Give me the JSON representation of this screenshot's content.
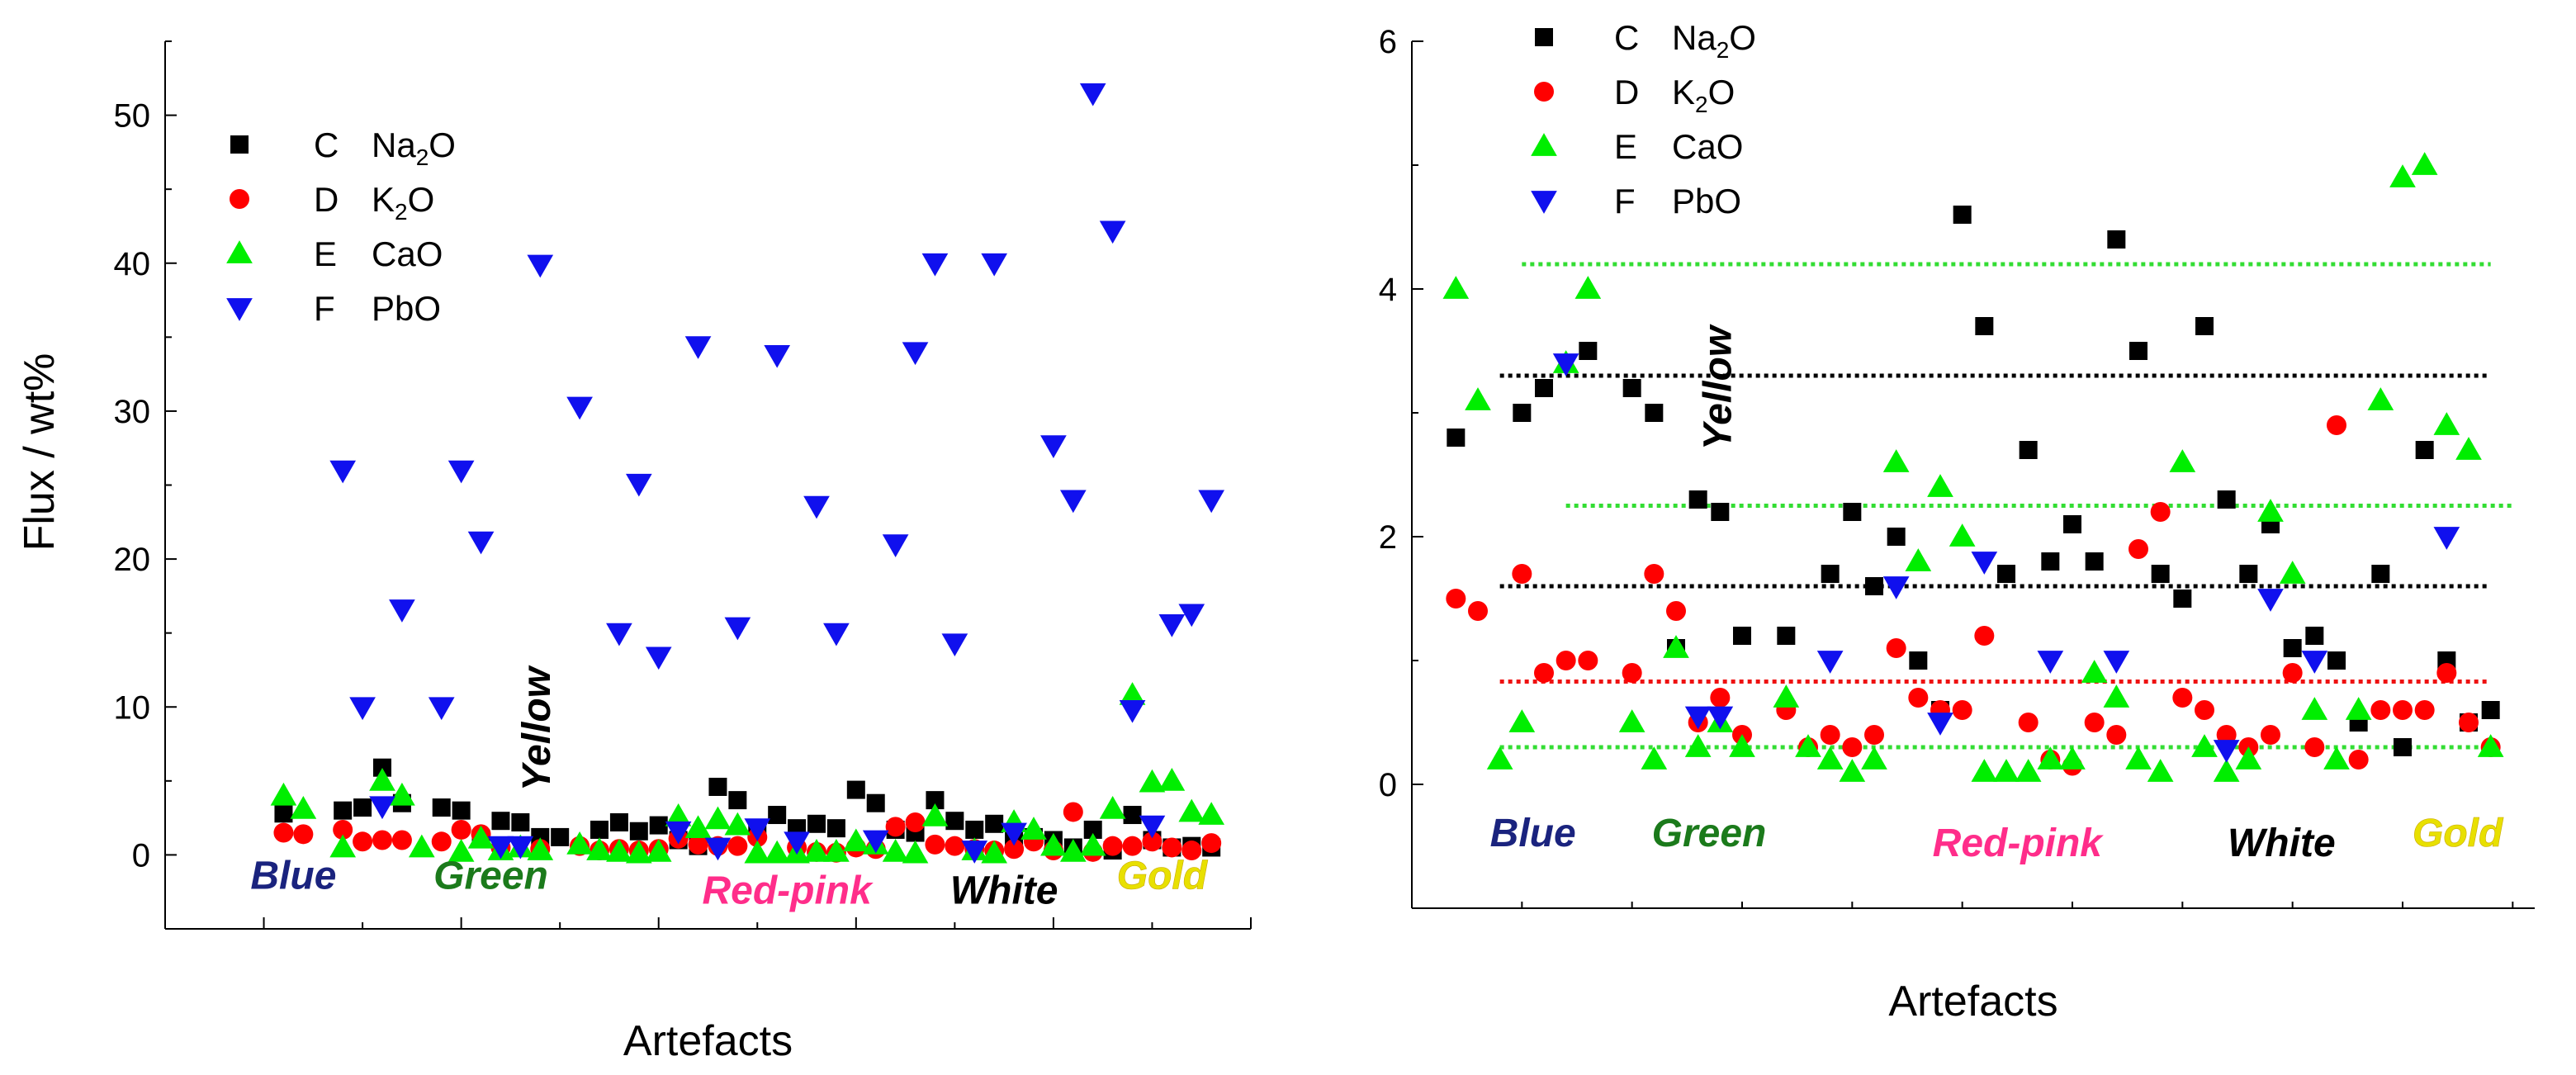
{
  "colors": {
    "na2o": "#000000",
    "k2o": "#ff0000",
    "cao": "#00ee00",
    "pbo": "#1010ee",
    "blue_label": "#1a237e",
    "green_label": "#1b7a1b",
    "red_label": "#ff2d8a",
    "white_label": "#000000",
    "gold_label": "#e8e000",
    "line_black": "#000000",
    "line_green": "#33dd33",
    "line_red": "#ee1111"
  },
  "legend": [
    {
      "key": "na2o",
      "letter": "C",
      "name_main": "Na",
      "name_sub": "2",
      "name_tail": "O",
      "marker": "square"
    },
    {
      "key": "k2o",
      "letter": "D",
      "name_main": "K",
      "name_sub": "2",
      "name_tail": "O",
      "marker": "circle"
    },
    {
      "key": "cao",
      "letter": "E",
      "name_main": "CaO",
      "name_sub": "",
      "name_tail": "",
      "marker": "triangle-up"
    },
    {
      "key": "pbo",
      "letter": "F",
      "name_main": "PbO",
      "name_sub": "",
      "name_tail": "",
      "marker": "triangle-down"
    }
  ],
  "chart_data": [
    {
      "type": "scatter",
      "title": "",
      "xlabel": "Artefacts",
      "ylabel": "Flux  /  wt%",
      "xlim": [
        -5,
        50
      ],
      "ylim": [
        -5,
        55
      ],
      "yticks": [
        0,
        10,
        20,
        30,
        40,
        50
      ],
      "xticks_major": [
        0,
        10,
        20,
        30,
        40,
        50
      ],
      "category_labels": [
        {
          "text": "Blue",
          "x": 1.5,
          "y": -2.3,
          "color_key": "blue_label"
        },
        {
          "text": "Green",
          "x": 11.5,
          "y": -2.3,
          "color_key": "green_label"
        },
        {
          "text": "Yellow",
          "x": 14.5,
          "y": 8.5,
          "color_key": "white_label",
          "rotate": true
        },
        {
          "text": "Red-pink",
          "x": 26.5,
          "y": -3.3,
          "color_key": "red_label"
        },
        {
          "text": "White",
          "x": 37.5,
          "y": -3.3,
          "color_key": "white_label"
        },
        {
          "text": "Gold",
          "x": 45.5,
          "y": -2.3,
          "color_key": "gold_label"
        }
      ],
      "series": [
        {
          "name": "C Na2O",
          "key": "na2o",
          "marker": "square",
          "x": [
            1,
            4,
            5,
            6,
            7,
            9,
            10,
            11,
            12,
            13,
            14,
            15,
            17,
            18,
            19,
            20,
            21,
            22,
            23,
            24,
            25,
            26,
            27,
            28,
            29,
            30,
            31,
            32,
            33,
            34,
            35,
            36,
            37,
            38,
            39,
            40,
            41,
            42,
            43,
            44,
            45,
            46,
            47,
            48
          ],
          "y": [
            2.8,
            3.0,
            3.2,
            5.9,
            3.5,
            3.2,
            3.0,
            1.1,
            2.3,
            2.2,
            1.2,
            1.2,
            1.7,
            2.2,
            1.6,
            2.0,
            1.0,
            0.6,
            4.6,
            3.7,
            1.7,
            2.7,
            1.8,
            2.1,
            1.8,
            4.4,
            3.5,
            1.7,
            1.5,
            3.7,
            2.3,
            1.7,
            2.1,
            1.1,
            1.2,
            1.0,
            0.5,
            1.7,
            0.3,
            2.7,
            1.0,
            0.5,
            0.6,
            0.5
          ]
        },
        {
          "name": "D K2O",
          "key": "k2o",
          "marker": "circle",
          "x": [
            1,
            2,
            4,
            5,
            6,
            7,
            9,
            10,
            11,
            12,
            14,
            16,
            17,
            18,
            19,
            20,
            21,
            22,
            23,
            24,
            25,
            27,
            28,
            29,
            30,
            31,
            32,
            33,
            34,
            35,
            36,
            37,
            38,
            39,
            40,
            41,
            42,
            43,
            44,
            45,
            46,
            47,
            48
          ],
          "y": [
            1.5,
            1.4,
            1.7,
            0.9,
            1.0,
            1.0,
            0.9,
            1.7,
            1.4,
            0.5,
            0.4,
            0.6,
            0.3,
            0.4,
            0.3,
            0.4,
            1.1,
            0.7,
            0.6,
            0.6,
            1.2,
            0.5,
            0.2,
            0.15,
            0.5,
            0.4,
            1.9,
            2.2,
            0.7,
            0.6,
            0.4,
            0.3,
            0.4,
            0.9,
            0.3,
            2.9,
            0.2,
            0.6,
            0.6,
            0.9,
            0.5,
            0.3,
            0.8
          ]
        },
        {
          "name": "E CaO",
          "key": "cao",
          "marker": "triangle-up",
          "x": [
            1,
            2,
            4,
            6,
            7,
            8,
            10,
            11,
            12,
            13,
            14,
            16,
            17,
            18,
            19,
            20,
            21,
            22,
            23,
            24,
            25,
            26,
            27,
            28,
            29,
            30,
            31,
            32,
            33,
            34,
            36,
            37,
            38,
            39,
            40,
            41,
            42,
            43,
            44,
            45,
            46,
            47,
            48
          ],
          "y": [
            4.0,
            3.1,
            0.5,
            5.0,
            4.0,
            0.5,
            0.2,
            1.1,
            0.3,
            0.5,
            0.3,
            0.7,
            0.3,
            0.2,
            0.1,
            0.2,
            2.6,
            1.8,
            2.4,
            2.0,
            0.1,
            0.1,
            0.1,
            0.2,
            0.2,
            0.9,
            0.7,
            0.2,
            0.1,
            2.6,
            0.3,
            0.1,
            2.2,
            1.7,
            0.6,
            0.2,
            0.6,
            3.1,
            10.8,
            4.9,
            5.0,
            2.9,
            2.7
          ]
        },
        {
          "name": "F PbO",
          "key": "pbo",
          "marker": "triangle-down",
          "x": [
            4,
            5,
            6,
            7,
            9,
            10,
            11,
            12,
            13,
            14,
            16,
            18,
            19,
            20,
            21,
            22,
            23,
            24,
            25,
            26,
            27,
            28,
            29,
            31,
            32,
            33,
            34,
            35,
            36,
            37,
            38,
            40,
            41,
            42,
            43,
            44,
            45,
            46,
            47,
            48
          ],
          "y": [
            26.0,
            10.0,
            3.3,
            16.6,
            10.0,
            26.0,
            21.2,
            0.6,
            0.6,
            39.9,
            30.3,
            15.0,
            25.1,
            13.4,
            1.6,
            34.4,
            0.5,
            15.4,
            1.8,
            33.8,
            0.9,
            23.6,
            15.0,
            1.0,
            21.0,
            34.0,
            40.0,
            14.3,
            0.3,
            40.0,
            1.5,
            27.7,
            24.0,
            51.5,
            42.2,
            9.8,
            2.0,
            15.6,
            16.3,
            24.0
          ]
        }
      ]
    },
    {
      "type": "scatter",
      "title": "",
      "xlabel": "Artefacts",
      "ylabel": "",
      "xlim": [
        -1,
        50
      ],
      "ylim": [
        -1,
        6
      ],
      "yticks": [
        0,
        2,
        4,
        6
      ],
      "xticks_major": [
        0,
        10,
        20,
        30,
        40,
        50
      ],
      "reference_lines": [
        {
          "y": 4.2,
          "x_from": 4,
          "x_to": 48,
          "color_key": "line_green"
        },
        {
          "y": 3.3,
          "x_from": 3,
          "x_to": 48,
          "color_key": "line_black"
        },
        {
          "y": 2.25,
          "x_from": 6,
          "x_to": 49,
          "color_key": "line_green"
        },
        {
          "y": 1.6,
          "x_from": 3,
          "x_to": 48,
          "color_key": "line_black"
        },
        {
          "y": 0.83,
          "x_from": 3,
          "x_to": 48,
          "color_key": "line_red"
        },
        {
          "y": 0.3,
          "x_from": 3,
          "x_to": 48,
          "color_key": "line_green"
        }
      ],
      "category_labels": [
        {
          "text": "Blue",
          "x": 4.5,
          "y": -0.5,
          "color_key": "blue_label"
        },
        {
          "text": "Green",
          "x": 12.5,
          "y": -0.5,
          "color_key": "green_label"
        },
        {
          "text": "Yellow",
          "x": 13.5,
          "y": 3.2,
          "color_key": "white_label",
          "rotate": true
        },
        {
          "text": "Red-pink",
          "x": 26.5,
          "y": -0.58,
          "color_key": "red_label"
        },
        {
          "text": "White",
          "x": 38.5,
          "y": -0.58,
          "color_key": "white_label"
        },
        {
          "text": "Gold",
          "x": 46.5,
          "y": -0.5,
          "color_key": "gold_label"
        }
      ],
      "series": [
        {
          "name": "C Na2O",
          "key": "na2o",
          "marker": "square",
          "x": [
            1,
            4,
            5,
            7,
            9,
            10,
            11,
            12,
            13,
            14,
            16,
            18,
            19,
            20,
            21,
            22,
            23,
            24,
            25,
            26,
            27,
            28,
            29,
            30,
            31,
            32,
            33,
            34,
            35,
            36,
            37,
            38,
            39,
            40,
            41,
            42,
            43,
            44,
            45,
            46,
            47,
            48
          ],
          "y": [
            2.8,
            3.0,
            3.2,
            3.5,
            3.2,
            3.0,
            1.1,
            2.3,
            2.2,
            1.2,
            1.2,
            1.7,
            2.2,
            1.6,
            2.0,
            1.0,
            0.6,
            4.6,
            3.7,
            1.7,
            2.7,
            1.8,
            2.1,
            1.8,
            4.4,
            3.5,
            1.7,
            1.5,
            3.7,
            2.3,
            1.7,
            2.1,
            1.1,
            1.2,
            1.0,
            0.5,
            1.7,
            0.3,
            2.7,
            1.0,
            0.5,
            0.6
          ]
        },
        {
          "name": "D K2O",
          "key": "k2o",
          "marker": "circle",
          "x": [
            1,
            2,
            4,
            5,
            6,
            7,
            9,
            10,
            11,
            12,
            13,
            14,
            16,
            17,
            18,
            19,
            20,
            21,
            22,
            23,
            24,
            25,
            27,
            28,
            29,
            30,
            31,
            32,
            33,
            34,
            35,
            36,
            37,
            38,
            39,
            40,
            41,
            42,
            43,
            44,
            45,
            46,
            47,
            48
          ],
          "y": [
            1.5,
            1.4,
            1.7,
            0.9,
            1.0,
            1.0,
            0.9,
            1.7,
            1.4,
            0.5,
            0.7,
            0.4,
            0.6,
            0.3,
            0.4,
            0.3,
            0.4,
            1.1,
            0.7,
            0.6,
            0.6,
            1.2,
            0.5,
            0.2,
            0.15,
            0.5,
            0.4,
            1.9,
            2.2,
            0.7,
            0.6,
            0.4,
            0.3,
            0.4,
            0.9,
            0.3,
            2.9,
            0.2,
            0.6,
            0.6,
            0.6,
            0.9,
            0.5,
            0.3
          ]
        },
        {
          "name": "E CaO",
          "key": "cao",
          "marker": "triangle-up",
          "x": [
            1,
            2,
            3,
            4,
            6,
            7,
            9,
            10,
            11,
            12,
            13,
            14,
            16,
            17,
            18,
            19,
            20,
            21,
            22,
            23,
            24,
            25,
            26,
            27,
            28,
            29,
            30,
            31,
            32,
            33,
            34,
            35,
            36,
            37,
            38,
            39,
            40,
            41,
            42,
            43,
            44,
            45,
            46,
            47,
            48
          ],
          "y": [
            4.0,
            3.1,
            0.2,
            0.5,
            3.4,
            4.0,
            0.5,
            0.2,
            1.1,
            0.3,
            0.5,
            0.3,
            0.7,
            0.3,
            0.2,
            0.1,
            0.2,
            2.6,
            1.8,
            2.4,
            2.0,
            0.1,
            0.1,
            0.1,
            0.2,
            0.2,
            0.9,
            0.7,
            0.2,
            0.1,
            2.6,
            0.3,
            0.1,
            0.2,
            2.2,
            1.7,
            0.6,
            0.2,
            0.6,
            3.1,
            4.9,
            5.0,
            2.9,
            2.7,
            0.3
          ]
        },
        {
          "name": "F PbO",
          "key": "pbo",
          "marker": "triangle-down",
          "x": [
            6,
            12,
            13,
            18,
            21,
            23,
            25,
            28,
            31,
            36,
            38,
            40,
            46
          ],
          "y": [
            3.4,
            0.55,
            0.55,
            1.0,
            1.6,
            0.5,
            1.8,
            1.0,
            1.0,
            0.28,
            1.5,
            1.0,
            2.0
          ]
        }
      ]
    }
  ]
}
